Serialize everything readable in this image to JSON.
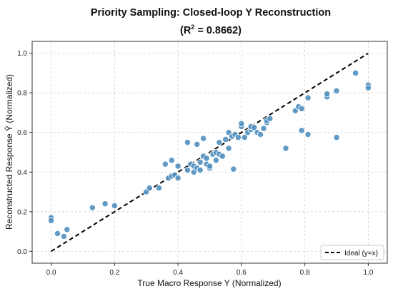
{
  "chart_data": {
    "type": "scatter",
    "title": "Priority Sampling: Closed-loop Y Reconstruction",
    "subtitle_prefix": "(R",
    "subtitle_sup": "2",
    "subtitle_suffix": " = 0.8662)",
    "xlabel": "True Macro Response Y (Normalized)",
    "ylabel": "Reconstructed Response Ŷ (Normalized)",
    "xlim": [
      -0.06,
      1.06
    ],
    "ylim": [
      -0.06,
      1.06
    ],
    "xticks": [
      "0.0",
      "0.2",
      "0.4",
      "0.6",
      "0.8",
      "1.0"
    ],
    "yticks": [
      "0.0",
      "0.2",
      "0.4",
      "0.6",
      "0.8",
      "1.0"
    ],
    "grid": true,
    "legend": {
      "position": "bottom-right",
      "label": "Ideal (y=x)"
    },
    "ideal_line": {
      "x": [
        0,
        1
      ],
      "y": [
        0,
        1
      ],
      "style": "dashed",
      "color": "#000000"
    },
    "colors": {
      "points": "#4f8fbf",
      "point_edge": "#ffffff",
      "grid": "#cfcfcf",
      "axis": "#333333"
    },
    "points": [
      [
        0.0,
        0.17
      ],
      [
        0.0,
        0.155
      ],
      [
        0.02,
        0.09
      ],
      [
        0.04,
        0.075
      ],
      [
        0.05,
        0.11
      ],
      [
        0.13,
        0.22
      ],
      [
        0.17,
        0.24
      ],
      [
        0.2,
        0.23
      ],
      [
        0.3,
        0.3
      ],
      [
        0.31,
        0.32
      ],
      [
        0.34,
        0.32
      ],
      [
        0.36,
        0.44
      ],
      [
        0.37,
        0.37
      ],
      [
        0.38,
        0.38
      ],
      [
        0.38,
        0.46
      ],
      [
        0.39,
        0.385
      ],
      [
        0.4,
        0.37
      ],
      [
        0.4,
        0.43
      ],
      [
        0.43,
        0.55
      ],
      [
        0.43,
        0.41
      ],
      [
        0.44,
        0.44
      ],
      [
        0.45,
        0.4
      ],
      [
        0.45,
        0.43
      ],
      [
        0.46,
        0.42
      ],
      [
        0.46,
        0.54
      ],
      [
        0.47,
        0.41
      ],
      [
        0.47,
        0.45
      ],
      [
        0.48,
        0.48
      ],
      [
        0.48,
        0.57
      ],
      [
        0.49,
        0.44
      ],
      [
        0.49,
        0.47
      ],
      [
        0.5,
        0.42
      ],
      [
        0.5,
        0.43
      ],
      [
        0.51,
        0.49
      ],
      [
        0.52,
        0.46
      ],
      [
        0.52,
        0.5
      ],
      [
        0.53,
        0.49
      ],
      [
        0.53,
        0.55
      ],
      [
        0.54,
        0.48
      ],
      [
        0.55,
        0.565
      ],
      [
        0.56,
        0.52
      ],
      [
        0.56,
        0.6
      ],
      [
        0.57,
        0.58
      ],
      [
        0.575,
        0.415
      ],
      [
        0.58,
        0.59
      ],
      [
        0.59,
        0.575
      ],
      [
        0.6,
        0.63
      ],
      [
        0.6,
        0.645
      ],
      [
        0.61,
        0.575
      ],
      [
        0.62,
        0.6
      ],
      [
        0.63,
        0.615
      ],
      [
        0.63,
        0.63
      ],
      [
        0.64,
        0.625
      ],
      [
        0.65,
        0.6
      ],
      [
        0.66,
        0.59
      ],
      [
        0.67,
        0.62
      ],
      [
        0.68,
        0.65
      ],
      [
        0.68,
        0.66
      ],
      [
        0.69,
        0.67
      ],
      [
        0.74,
        0.52
      ],
      [
        0.77,
        0.71
      ],
      [
        0.78,
        0.73
      ],
      [
        0.79,
        0.72
      ],
      [
        0.79,
        0.61
      ],
      [
        0.81,
        0.775
      ],
      [
        0.81,
        0.59
      ],
      [
        0.87,
        0.78
      ],
      [
        0.87,
        0.795
      ],
      [
        0.9,
        0.81
      ],
      [
        0.9,
        0.575
      ],
      [
        0.96,
        0.9
      ],
      [
        1.0,
        0.84
      ],
      [
        1.0,
        0.825
      ]
    ]
  }
}
